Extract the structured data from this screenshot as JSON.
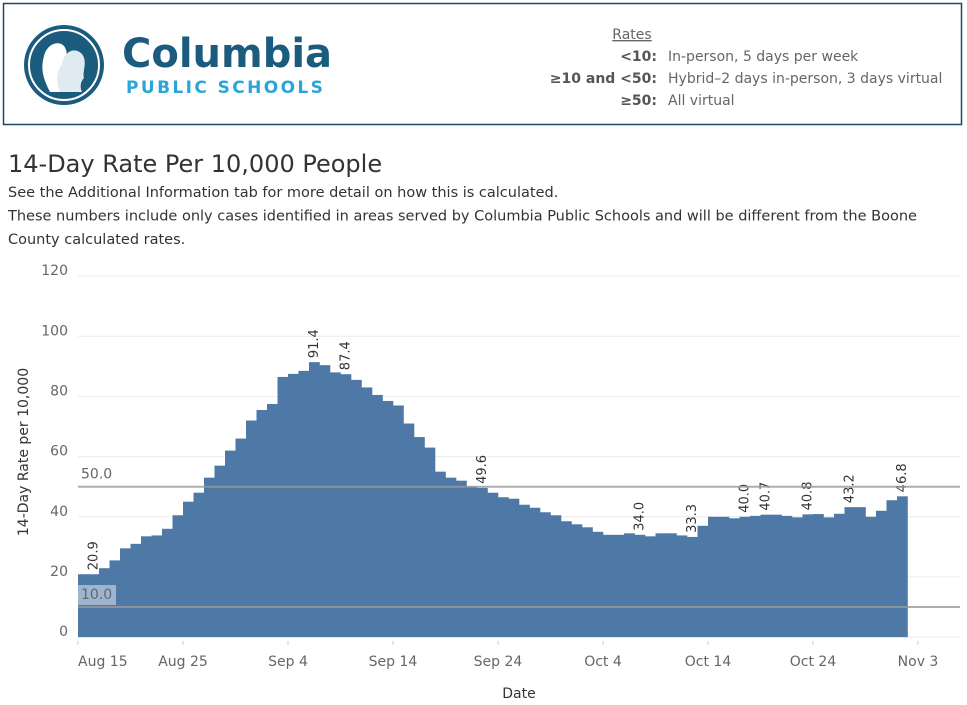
{
  "header": {
    "logo_name": "Columbia",
    "logo_sub": "PUBLIC SCHOOLS",
    "legend_title": "Rates",
    "legend": [
      {
        "key": "<10:",
        "text": "In-person, 5 days per week"
      },
      {
        "key": "≥10 and <50:",
        "text": "Hybrid–2 days in-person, 3 days virtual"
      },
      {
        "key": "≥50:",
        "text": "All virtual"
      }
    ]
  },
  "chart_data": {
    "type": "bar",
    "title": "14-Day Rate Per 10,000 People",
    "subtitle": [
      "See the Additional Information tab for more detail on how this is calculated.",
      "These numbers include only cases identified in areas served by Columbia Public Schools and will be different from the Boone",
      "County calculated rates."
    ],
    "x_label": "Date",
    "y_label": "14-Day Rate per 10,000",
    "x": [
      0,
      1,
      2,
      3,
      4,
      5,
      6,
      7,
      8,
      9,
      10,
      11,
      12,
      13,
      14,
      15,
      16,
      17,
      18,
      19,
      20,
      21,
      22,
      23,
      24,
      25,
      26,
      27,
      28,
      29,
      30,
      31,
      32,
      33,
      34,
      35,
      36,
      37,
      38,
      39,
      40,
      41,
      42,
      43,
      44,
      45,
      46,
      47,
      48,
      49,
      50,
      51,
      52,
      53,
      54,
      55,
      56,
      57,
      58,
      59,
      60,
      61,
      62,
      63,
      64,
      65,
      66,
      67,
      68,
      69,
      70,
      71,
      72,
      73,
      74,
      75,
      76,
      77,
      78
    ],
    "values": [
      20.9,
      20.9,
      22.9,
      25.5,
      29.5,
      31,
      33.5,
      33.8,
      36,
      40.5,
      45,
      48,
      53,
      57,
      62,
      66,
      72,
      75.5,
      77.5,
      86.5,
      87.5,
      88.5,
      91.4,
      90.4,
      88,
      87.4,
      85.5,
      83,
      80.5,
      78.5,
      77,
      71,
      66.5,
      63,
      55,
      53,
      52,
      50,
      49.6,
      48,
      46.5,
      46,
      44,
      43,
      41.5,
      40.5,
      38.5,
      37.5,
      36.5,
      35,
      34,
      34,
      34.5,
      34.0,
      33.5,
      34.5,
      34.5,
      33.8,
      33.3,
      37,
      40,
      40,
      39.5,
      40.0,
      40.3,
      40.7,
      40.7,
      40.3,
      39.8,
      40.8,
      40.9,
      39.8,
      41,
      43.2,
      43.2,
      40,
      42,
      45.5,
      46.8
    ],
    "value_labels": [
      null,
      "20.9",
      null,
      null,
      null,
      null,
      null,
      null,
      null,
      null,
      null,
      null,
      null,
      null,
      null,
      null,
      null,
      null,
      null,
      null,
      null,
      null,
      "91.4",
      null,
      null,
      "87.4",
      null,
      null,
      null,
      null,
      null,
      null,
      null,
      null,
      null,
      null,
      null,
      null,
      "49.6",
      null,
      null,
      null,
      null,
      null,
      null,
      null,
      null,
      null,
      null,
      null,
      null,
      null,
      null,
      "34.0",
      null,
      null,
      null,
      null,
      "33.3",
      null,
      null,
      null,
      null,
      "40.0",
      null,
      "40.7",
      null,
      null,
      null,
      "40.8",
      null,
      null,
      null,
      "43.2",
      null,
      null,
      null,
      null,
      "46.8"
    ],
    "color": "#4e79a7",
    "xlim": [
      0,
      84
    ],
    "xticks": [
      {
        "value": 0,
        "label": "Aug 15"
      },
      {
        "value": 10,
        "label": "Aug 25"
      },
      {
        "value": 20,
        "label": "Sep 4"
      },
      {
        "value": 30,
        "label": "Sep 14"
      },
      {
        "value": 40,
        "label": "Sep 24"
      },
      {
        "value": 50,
        "label": "Oct 4"
      },
      {
        "value": 60,
        "label": "Oct 14"
      },
      {
        "value": 70,
        "label": "Oct 24"
      },
      {
        "value": 80,
        "label": "Nov 3"
      }
    ],
    "ylim": [
      -1.3,
      123.7
    ],
    "yticks": [
      0,
      20,
      40,
      60,
      80,
      100,
      120
    ],
    "grid": true,
    "reference_lines": [
      {
        "value": 50,
        "label": "50.0"
      },
      {
        "value": 10,
        "label": "10.0"
      }
    ]
  }
}
